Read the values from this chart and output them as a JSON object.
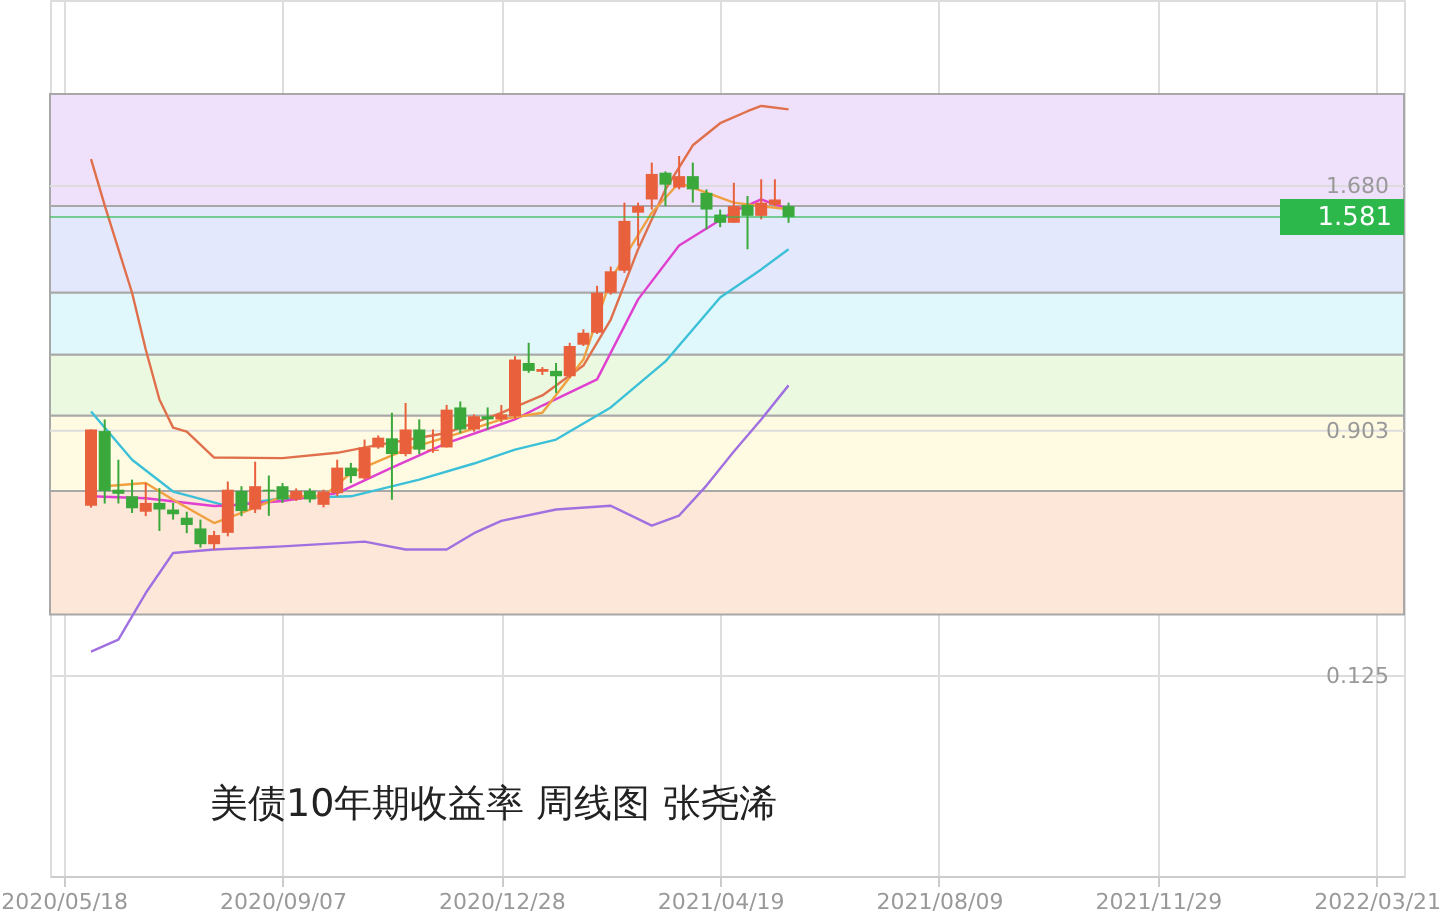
{
  "chart_data": {
    "type": "candlestick",
    "title": "美债10年期收益率  周线图 张尧浠",
    "x": [
      "2020-06-01",
      "2020-06-08",
      "2020-06-15",
      "2020-06-22",
      "2020-06-29",
      "2020-07-06",
      "2020-07-13",
      "2020-07-20",
      "2020-07-27",
      "2020-08-03",
      "2020-08-10",
      "2020-08-17",
      "2020-08-24",
      "2020-08-31",
      "2020-09-07",
      "2020-09-14",
      "2020-09-21",
      "2020-09-28",
      "2020-10-05",
      "2020-10-12",
      "2020-10-19",
      "2020-10-26",
      "2020-11-02",
      "2020-11-09",
      "2020-11-16",
      "2020-11-23",
      "2020-11-30",
      "2020-12-07",
      "2020-12-14",
      "2020-12-21",
      "2020-12-28",
      "2021-01-04",
      "2021-01-11",
      "2021-01-18",
      "2021-01-25",
      "2021-02-01",
      "2021-02-08",
      "2021-02-15",
      "2021-02-22",
      "2021-03-01",
      "2021-03-08",
      "2021-03-15",
      "2021-03-22",
      "2021-03-29",
      "2021-04-05",
      "2021-04-12",
      "2021-04-19",
      "2021-04-26",
      "2021-05-03",
      "2021-05-10",
      "2021-05-17",
      "2021-05-24"
    ],
    "ohlc": [
      [
        0.665,
        0.907,
        0.659,
        0.907
      ],
      [
        0.902,
        0.939,
        0.672,
        0.712
      ],
      [
        0.716,
        0.811,
        0.672,
        0.703
      ],
      [
        0.695,
        0.748,
        0.642,
        0.657
      ],
      [
        0.646,
        0.737,
        0.632,
        0.674
      ],
      [
        0.674,
        0.721,
        0.585,
        0.653
      ],
      [
        0.653,
        0.674,
        0.621,
        0.638
      ],
      [
        0.627,
        0.646,
        0.578,
        0.604
      ],
      [
        0.593,
        0.621,
        0.532,
        0.543
      ],
      [
        0.543,
        0.585,
        0.526,
        0.572
      ],
      [
        0.579,
        0.742,
        0.568,
        0.716
      ],
      [
        0.712,
        0.727,
        0.632,
        0.648
      ],
      [
        0.653,
        0.805,
        0.642,
        0.727
      ],
      [
        0.716,
        0.761,
        0.633,
        0.711
      ],
      [
        0.727,
        0.737,
        0.674,
        0.685
      ],
      [
        0.685,
        0.72,
        0.68,
        0.712
      ],
      [
        0.712,
        0.72,
        0.675,
        0.685
      ],
      [
        0.668,
        0.716,
        0.66,
        0.71
      ],
      [
        0.705,
        0.811,
        0.695,
        0.786
      ],
      [
        0.786,
        0.801,
        0.737,
        0.759
      ],
      [
        0.752,
        0.875,
        0.748,
        0.85
      ],
      [
        0.85,
        0.888,
        0.846,
        0.881
      ],
      [
        0.879,
        0.96,
        0.684,
        0.829
      ],
      [
        0.829,
        0.991,
        0.822,
        0.907
      ],
      [
        0.907,
        0.939,
        0.829,
        0.843
      ],
      [
        0.839,
        0.907,
        0.833,
        0.843
      ],
      [
        0.85,
        0.985,
        0.85,
        0.97
      ],
      [
        0.977,
        0.996,
        0.895,
        0.907
      ],
      [
        0.907,
        0.955,
        0.9,
        0.949
      ],
      [
        0.949,
        0.977,
        0.907,
        0.939
      ],
      [
        0.939,
        0.985,
        0.93,
        0.955
      ],
      [
        0.949,
        1.14,
        0.94,
        1.129
      ],
      [
        1.118,
        1.182,
        1.087,
        1.093
      ],
      [
        1.09,
        1.105,
        1.08,
        1.099
      ],
      [
        1.093,
        1.118,
        1.023,
        1.076
      ],
      [
        1.076,
        1.182,
        1.07,
        1.172
      ],
      [
        1.176,
        1.225,
        1.172,
        1.214
      ],
      [
        1.214,
        1.363,
        1.21,
        1.341
      ],
      [
        1.341,
        1.424,
        1.335,
        1.409
      ],
      [
        1.411,
        1.627,
        1.404,
        1.569
      ],
      [
        1.595,
        1.627,
        1.489,
        1.616
      ],
      [
        1.637,
        1.754,
        1.605,
        1.718
      ],
      [
        1.722,
        1.726,
        1.616,
        1.684
      ],
      [
        1.675,
        1.775,
        1.669,
        1.711
      ],
      [
        1.711,
        1.754,
        1.627,
        1.669
      ],
      [
        1.658,
        1.669,
        1.542,
        1.605
      ],
      [
        1.589,
        1.605,
        1.549,
        1.563
      ],
      [
        1.563,
        1.69,
        1.563,
        1.616
      ],
      [
        1.62,
        1.648,
        1.479,
        1.585
      ],
      [
        1.585,
        1.701,
        1.574,
        1.627
      ],
      [
        1.62,
        1.701,
        1.616,
        1.637
      ],
      [
        1.616,
        1.627,
        1.563,
        1.581
      ]
    ],
    "series": [
      {
        "type": "line",
        "color": "#e0704c",
        "x": [
          "2020-06-01",
          "2020-06-08",
          "2020-06-22",
          "2020-06-29",
          "2020-07-06",
          "2020-07-13",
          "2020-07-20",
          "2020-08-03",
          "2020-09-07",
          "2020-10-05",
          "2020-10-26",
          "2020-11-30",
          "2020-12-28",
          "2021-01-18",
          "2021-02-08",
          "2021-02-22",
          "2021-03-08",
          "2021-03-22",
          "2021-04-05",
          "2021-04-19",
          "2021-05-03",
          "2021-05-10",
          "2021-05-24"
        ],
        "values": [
          1.765,
          1.618,
          1.341,
          1.161,
          1.002,
          0.913,
          0.9,
          0.818,
          0.816,
          0.833,
          0.858,
          0.896,
          0.96,
          1.015,
          1.11,
          1.256,
          1.479,
          1.669,
          1.809,
          1.879,
          1.917,
          1.934,
          1.923
        ]
      },
      {
        "type": "line",
        "color": "#a070e0",
        "x": [
          "2020-06-01",
          "2020-06-15",
          "2020-06-29",
          "2020-07-13",
          "2020-08-03",
          "2020-09-07",
          "2020-10-19",
          "2020-11-09",
          "2020-11-30",
          "2020-12-14",
          "2020-12-28",
          "2021-01-25",
          "2021-02-22",
          "2021-03-15",
          "2021-03-29",
          "2021-04-12",
          "2021-04-26",
          "2021-05-10",
          "2021-05-24"
        ],
        "values": [
          0.202,
          0.24,
          0.388,
          0.515,
          0.526,
          0.536,
          0.551,
          0.526,
          0.526,
          0.578,
          0.617,
          0.653,
          0.665,
          0.602,
          0.634,
          0.729,
          0.837,
          0.939,
          1.047
        ]
      },
      {
        "type": "line",
        "color": "#3cc0d8",
        "x": [
          "2020-06-01",
          "2020-06-22",
          "2020-07-13",
          "2020-08-10",
          "2020-09-07",
          "2020-10-12",
          "2020-11-16",
          "2020-12-14",
          "2021-01-04",
          "2021-01-25",
          "2021-02-22",
          "2021-03-22",
          "2021-04-19",
          "2021-05-10",
          "2021-05-24"
        ],
        "values": [
          0.964,
          0.811,
          0.71,
          0.664,
          0.689,
          0.695,
          0.748,
          0.799,
          0.843,
          0.875,
          0.977,
          1.123,
          1.326,
          1.415,
          1.479
        ]
      },
      {
        "type": "line",
        "color": "#e040d0",
        "x": [
          "2020-06-01",
          "2020-06-29",
          "2020-08-03",
          "2020-08-10",
          "2020-09-07",
          "2020-10-05",
          "2020-11-02",
          "2020-11-30",
          "2021-01-04",
          "2021-01-18",
          "2021-02-15",
          "2021-03-08",
          "2021-03-29",
          "2021-04-26",
          "2021-05-10",
          "2021-05-24"
        ],
        "values": [
          0.695,
          0.689,
          0.664,
          0.666,
          0.68,
          0.705,
          0.786,
          0.864,
          0.939,
          0.983,
          1.066,
          1.32,
          1.491,
          1.599,
          1.637,
          1.606
        ]
      },
      {
        "type": "line",
        "color": "#f0a040",
        "x": [
          "2020-06-08",
          "2020-06-29",
          "2020-07-13",
          "2020-08-03",
          "2020-08-17",
          "2020-09-07",
          "2020-09-28",
          "2020-10-12",
          "2020-11-09",
          "2020-12-07",
          "2020-12-28",
          "2021-01-18",
          "2021-02-08",
          "2021-02-22",
          "2021-03-15",
          "2021-03-29",
          "2021-04-12",
          "2021-04-26",
          "2021-05-10",
          "2021-05-24"
        ],
        "values": [
          0.727,
          0.737,
          0.684,
          0.61,
          0.642,
          0.695,
          0.695,
          0.769,
          0.843,
          0.896,
          0.939,
          0.96,
          1.129,
          1.383,
          1.595,
          1.69,
          1.659,
          1.627,
          1.616,
          1.606
        ]
      }
    ],
    "bands": [
      {
        "axis": "y",
        "from": 1.972,
        "to": 1.616,
        "color": "#efe0fc"
      },
      {
        "axis": "y",
        "from": 1.616,
        "to": 1.341,
        "color": "#e4e8fd"
      },
      {
        "axis": "y",
        "from": 1.341,
        "to": 1.144,
        "color": "#e0f7fb"
      },
      {
        "axis": "y",
        "from": 1.144,
        "to": 0.951,
        "color": "#ebf9e0"
      },
      {
        "axis": "y",
        "from": 0.951,
        "to": 0.712,
        "color": "#fffbe2"
      },
      {
        "axis": "y",
        "from": 0.712,
        "to": 0.32,
        "color": "#fde7d9"
      }
    ],
    "ref_lines": [
      {
        "axis": "y",
        "value": 1.581,
        "label": "1.581",
        "color": "#2db84c"
      }
    ],
    "xlim": [
      "2020-05-11",
      "2022-04-04"
    ],
    "xticks": [
      {
        "value": "2020-05-18",
        "label": "2020/05/18"
      },
      {
        "value": "2020-09-07",
        "label": "2020/09/07"
      },
      {
        "value": "2020-12-28",
        "label": "2020/12/28"
      },
      {
        "value": "2021-04-19",
        "label": "2021/04/19"
      },
      {
        "value": "2021-08-09",
        "label": "2021/08/09"
      },
      {
        "value": "2021-11-29",
        "label": "2021/11/29"
      },
      {
        "value": "2022-03-21",
        "label": "2022/03/21"
      }
    ],
    "ylim": [
      -0.51,
      2.27
    ],
    "yticks": [
      {
        "value": 0.125,
        "label": "0.125"
      },
      {
        "value": 0.903,
        "label": "0.903"
      },
      {
        "value": 1.68,
        "label": "1.680"
      }
    ],
    "grid": true
  }
}
